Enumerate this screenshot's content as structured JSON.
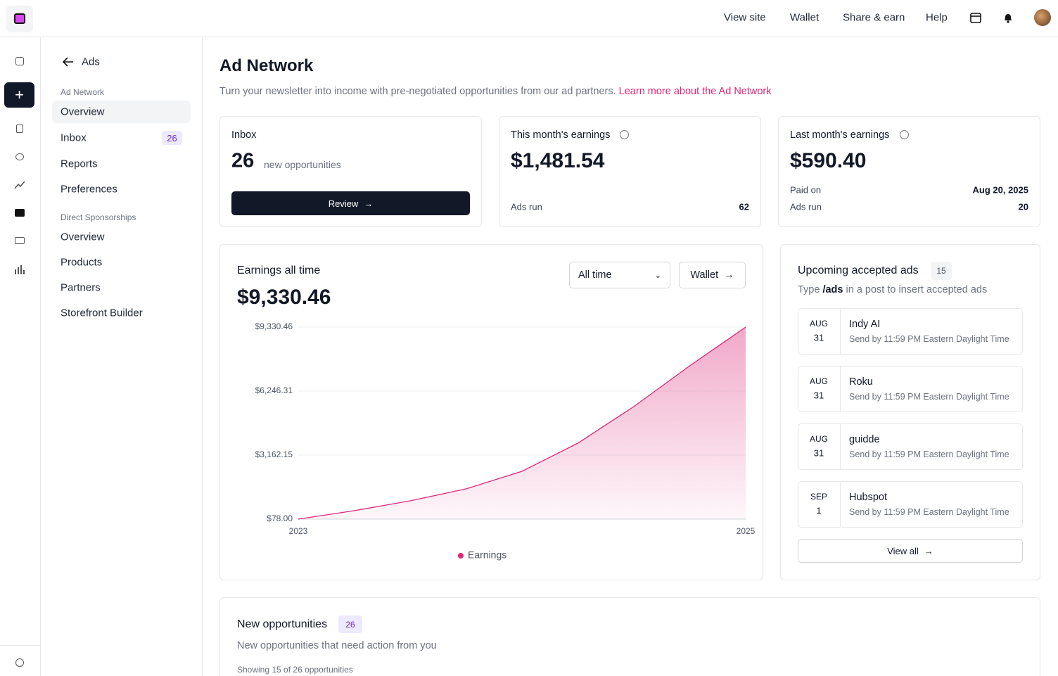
{
  "topnav": {
    "links": [
      "View site",
      "Wallet",
      "Share & earn",
      "Help"
    ]
  },
  "sidebar": {
    "back": "Ads",
    "sections": [
      {
        "heading": "Ad Network",
        "items": [
          {
            "label": "Overview"
          },
          {
            "label": "Inbox",
            "badge": "26"
          },
          {
            "label": "Reports"
          },
          {
            "label": "Preferences"
          }
        ]
      },
      {
        "heading": "Direct Sponsorships",
        "items": [
          {
            "label": "Overview"
          },
          {
            "label": "Products"
          },
          {
            "label": "Partners"
          },
          {
            "label": "Storefront Builder"
          }
        ]
      }
    ]
  },
  "page": {
    "title": "Ad Network",
    "description": "Turn your newsletter into income with pre-negotiated opportunities from our ad partners.",
    "link": "Learn more about the Ad Network"
  },
  "cards": {
    "inbox": {
      "title": "Inbox",
      "count": "26",
      "count_note": "new opportunities",
      "button": "Review"
    },
    "this_month": {
      "title": "This month's earnings",
      "amount": "$1,481.54",
      "rows": [
        {
          "label": "Ads run",
          "value": "62"
        }
      ]
    },
    "last_month": {
      "title": "Last month's earnings",
      "amount": "$590.40",
      "rows": [
        {
          "label": "Paid on",
          "value": "Aug 20, 2025"
        },
        {
          "label": "Ads run",
          "value": "20"
        }
      ]
    }
  },
  "earnings": {
    "title": "Earnings all time",
    "amount": "$9,330.46",
    "range": "All time",
    "wallet_button": "Wallet"
  },
  "chart_data": {
    "type": "area",
    "x": [
      2023,
      2023.25,
      2023.5,
      2023.75,
      2024,
      2024.25,
      2024.5,
      2024.75,
      2025
    ],
    "series": [
      {
        "name": "Earnings",
        "color": "#db2777",
        "values": [
          78,
          485,
          960,
          1535,
          2383,
          3738,
          5501,
          7467,
          9330.46
        ]
      }
    ],
    "xlim": [
      2023,
      2025
    ],
    "xticks": [
      2023,
      2025
    ],
    "ylim": [
      78,
      9330.46
    ],
    "yticks": [
      {
        "value": 78,
        "label": "$78.00"
      },
      {
        "value": 3162.15,
        "label": "$3,162.15"
      },
      {
        "value": 6246.31,
        "label": "$6,246.31"
      },
      {
        "value": 9330.46,
        "label": "$9,330.46"
      }
    ],
    "grid": true
  },
  "upcoming": {
    "title": "Upcoming accepted ads",
    "count": "15",
    "hint_before": "Type",
    "hint_code": "/ads",
    "hint_after": "in a post to insert accepted ads",
    "items": [
      {
        "month": "AUG",
        "day": "31",
        "name": "Indy AI",
        "note": "Send by 11:59 PM Eastern Daylight Time"
      },
      {
        "month": "AUG",
        "day": "31",
        "name": "Roku",
        "note": "Send by 11:59 PM Eastern Daylight Time"
      },
      {
        "month": "AUG",
        "day": "31",
        "name": "guidde",
        "note": "Send by 11:59 PM Eastern Daylight Time"
      },
      {
        "month": "SEP",
        "day": "1",
        "name": "Hubspot",
        "note": "Send by 11:59 PM Eastern Daylight Time"
      }
    ],
    "view_all": "View all"
  },
  "opportunities": {
    "title": "New opportunities",
    "count": "26",
    "description": "New opportunities that need action from you",
    "showing": "Showing 15 of 26 opportunities"
  }
}
